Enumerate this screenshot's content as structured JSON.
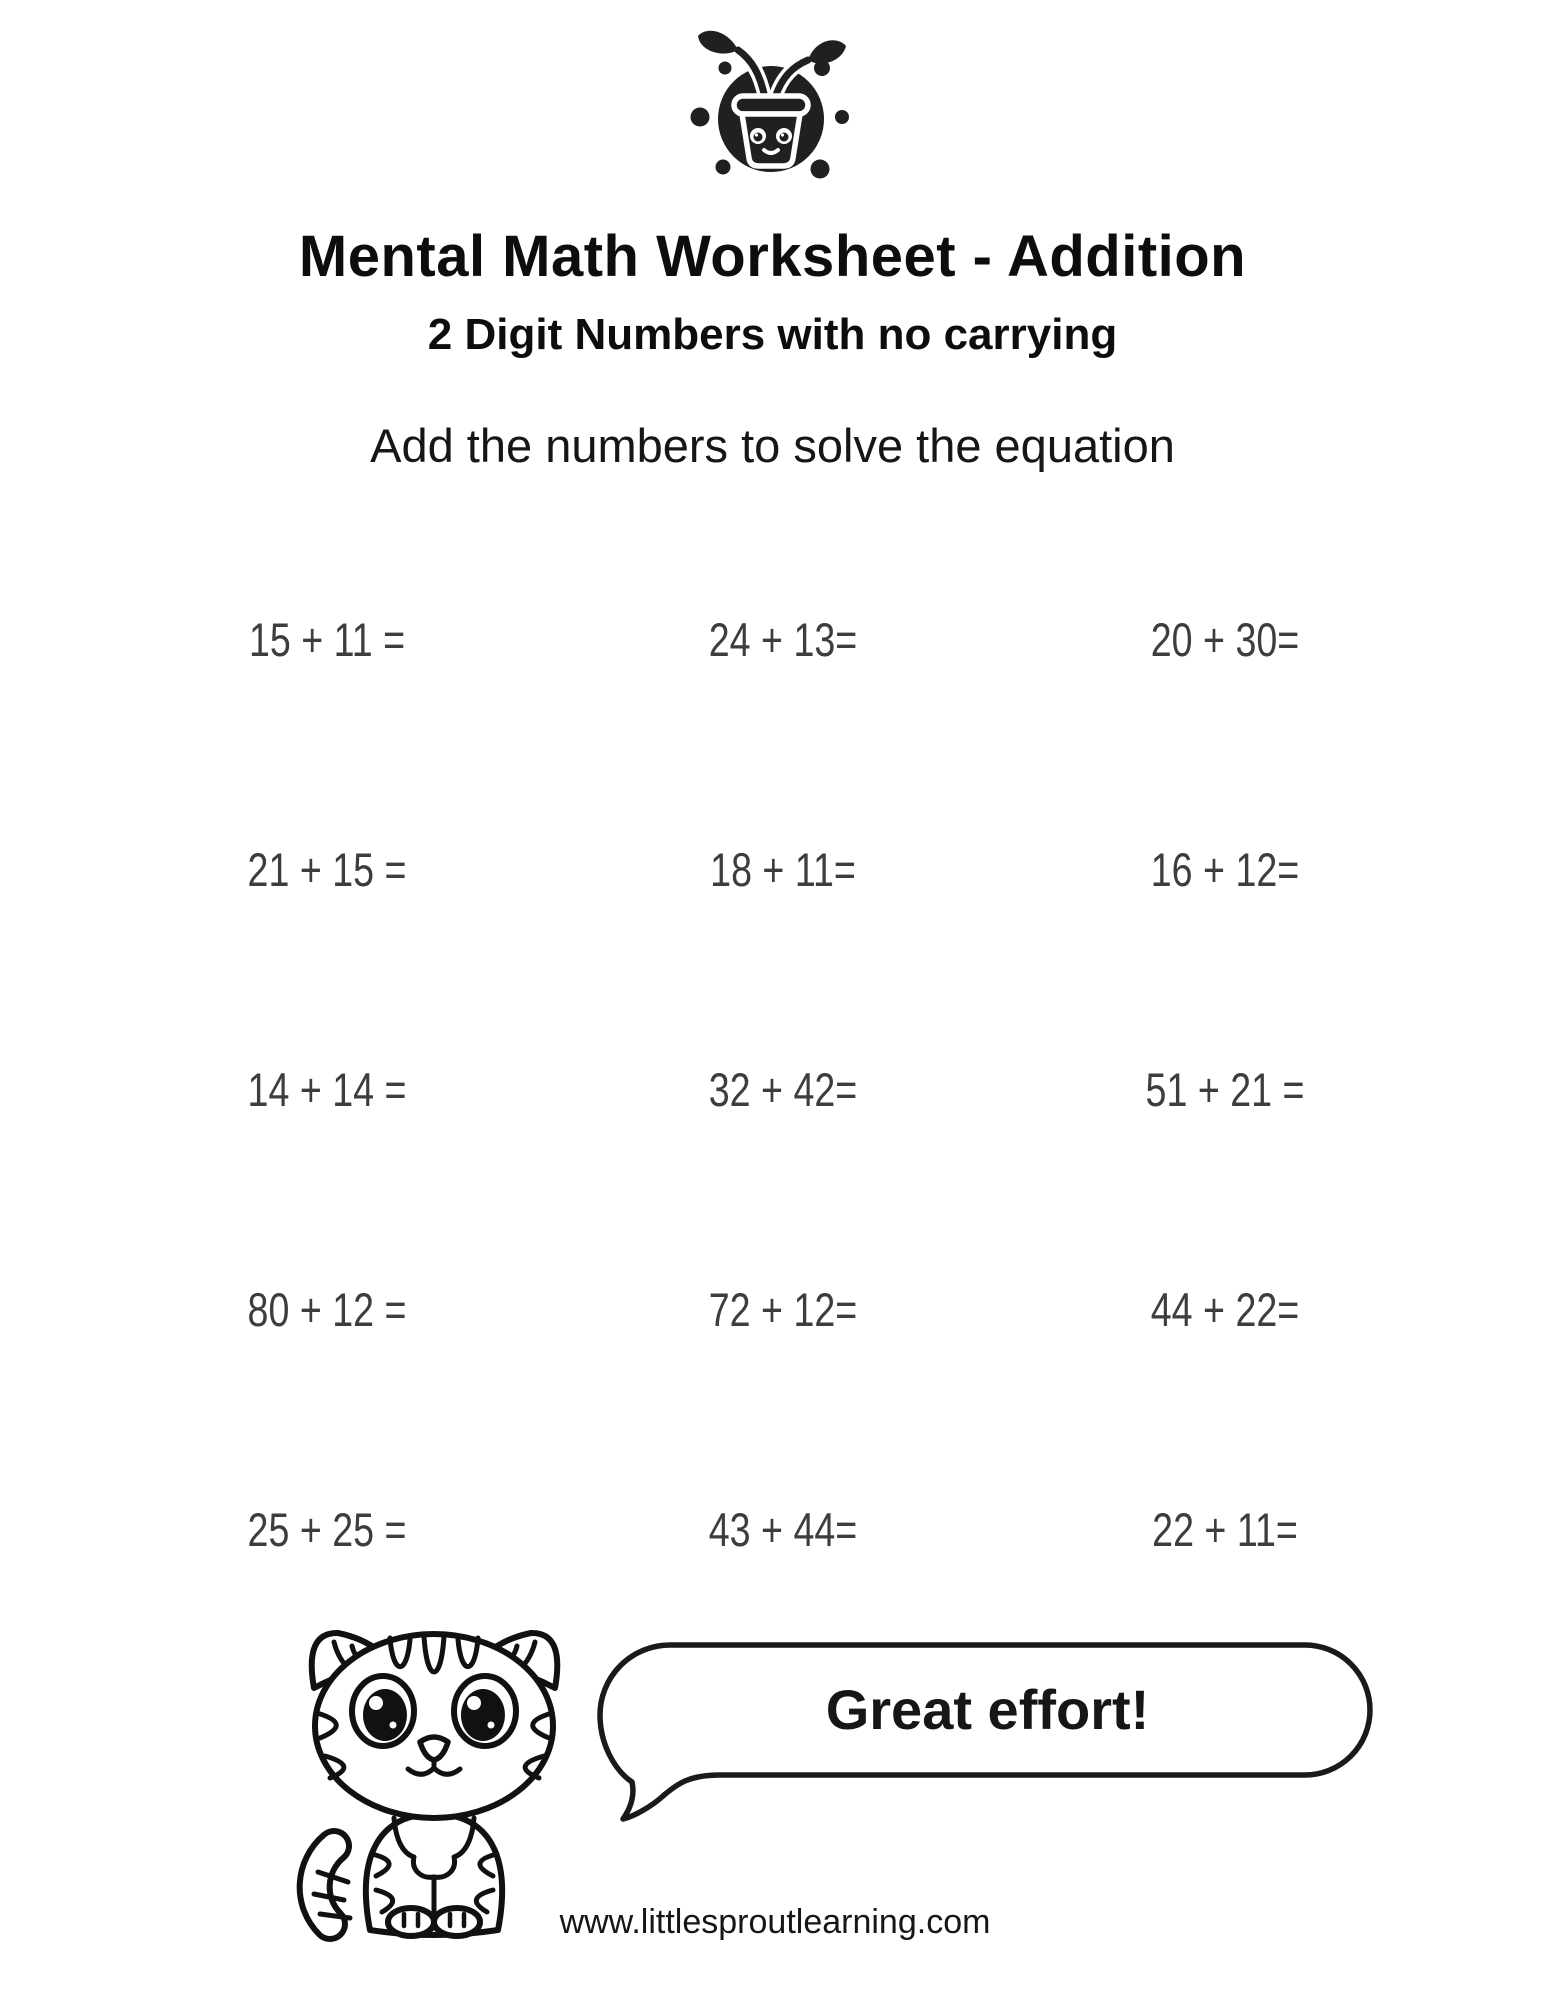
{
  "page": {
    "background_color": "#ffffff",
    "ink_color": "#111111",
    "problem_text_color": "#3d3d3d"
  },
  "logo": {
    "icon": "sprout-pot-logo-icon"
  },
  "header": {
    "title": "Mental Math Worksheet - Addition",
    "subtitle": "2 Digit Numbers with no carrying",
    "instruction": "Add the numbers to solve the equation"
  },
  "problems": {
    "rows": [
      [
        "15 + 11 =",
        "24 + 13=",
        "20 + 30="
      ],
      [
        "21 + 15 =",
        "18 + 11=",
        "16 + 12="
      ],
      [
        "14 + 14 =",
        "32 + 42=",
        "51 + 21 ="
      ],
      [
        "80 + 12 =",
        "72 + 12=",
        "44 + 22="
      ],
      [
        "25 + 25 =",
        "43 + 44=",
        "22 + 11="
      ]
    ]
  },
  "footer": {
    "cat_icon": "striped-kitten-illustration",
    "speech_bubble_text": "Great effort!",
    "website": "www.littlesproutlearning.com"
  }
}
